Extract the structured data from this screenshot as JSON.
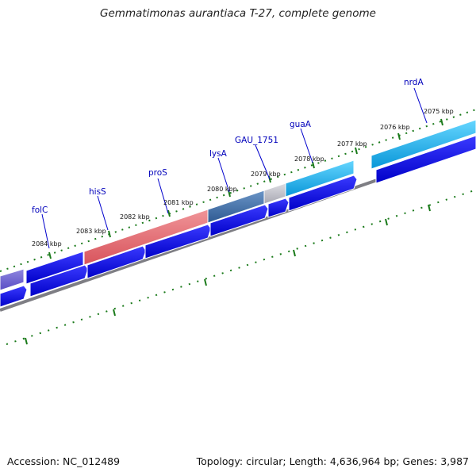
{
  "title": "Gemmatimonas aurantiaca T-27, complete genome",
  "accession_line": "Accession: NC_012489",
  "info_line": "Topology: circular; Length: 4,636,964 bp; Genes: 3,987",
  "kbp_ticks": [
    {
      "label": "2084 kbp",
      "pos": 2084
    },
    {
      "label": "2083 kbp",
      "pos": 2083
    },
    {
      "label": "2082 kbp",
      "pos": 2082
    },
    {
      "label": "2081 kbp",
      "pos": 2081
    },
    {
      "label": "2080 kbp",
      "pos": 2080
    },
    {
      "label": "2079 kbp",
      "pos": 2079
    },
    {
      "label": "2078 kbp",
      "pos": 2078
    },
    {
      "label": "2077 kbp",
      "pos": 2077
    },
    {
      "label": "2076 kbp",
      "pos": 2076
    },
    {
      "label": "2075 kbp",
      "pos": 2075
    }
  ],
  "gene_labels": [
    {
      "name": "folC"
    },
    {
      "name": "hisS"
    },
    {
      "name": "proS"
    },
    {
      "name": "lysA"
    },
    {
      "name": "GAU_1751"
    },
    {
      "name": "guaA"
    },
    {
      "name": "nrdA"
    }
  ],
  "colors": {
    "forward_strand": "#0000e0",
    "folC": "#7060d0",
    "hisS": "#e06870",
    "proS": "#e06870",
    "lysA": "#4070a8",
    "GAU_1751": "#c0c0c8",
    "guaA": "#10b0f0",
    "nrdA": "#10b0f0",
    "backbone": "#808080",
    "ticks": "#1a7a1a",
    "gene_label": "#0000bb"
  }
}
